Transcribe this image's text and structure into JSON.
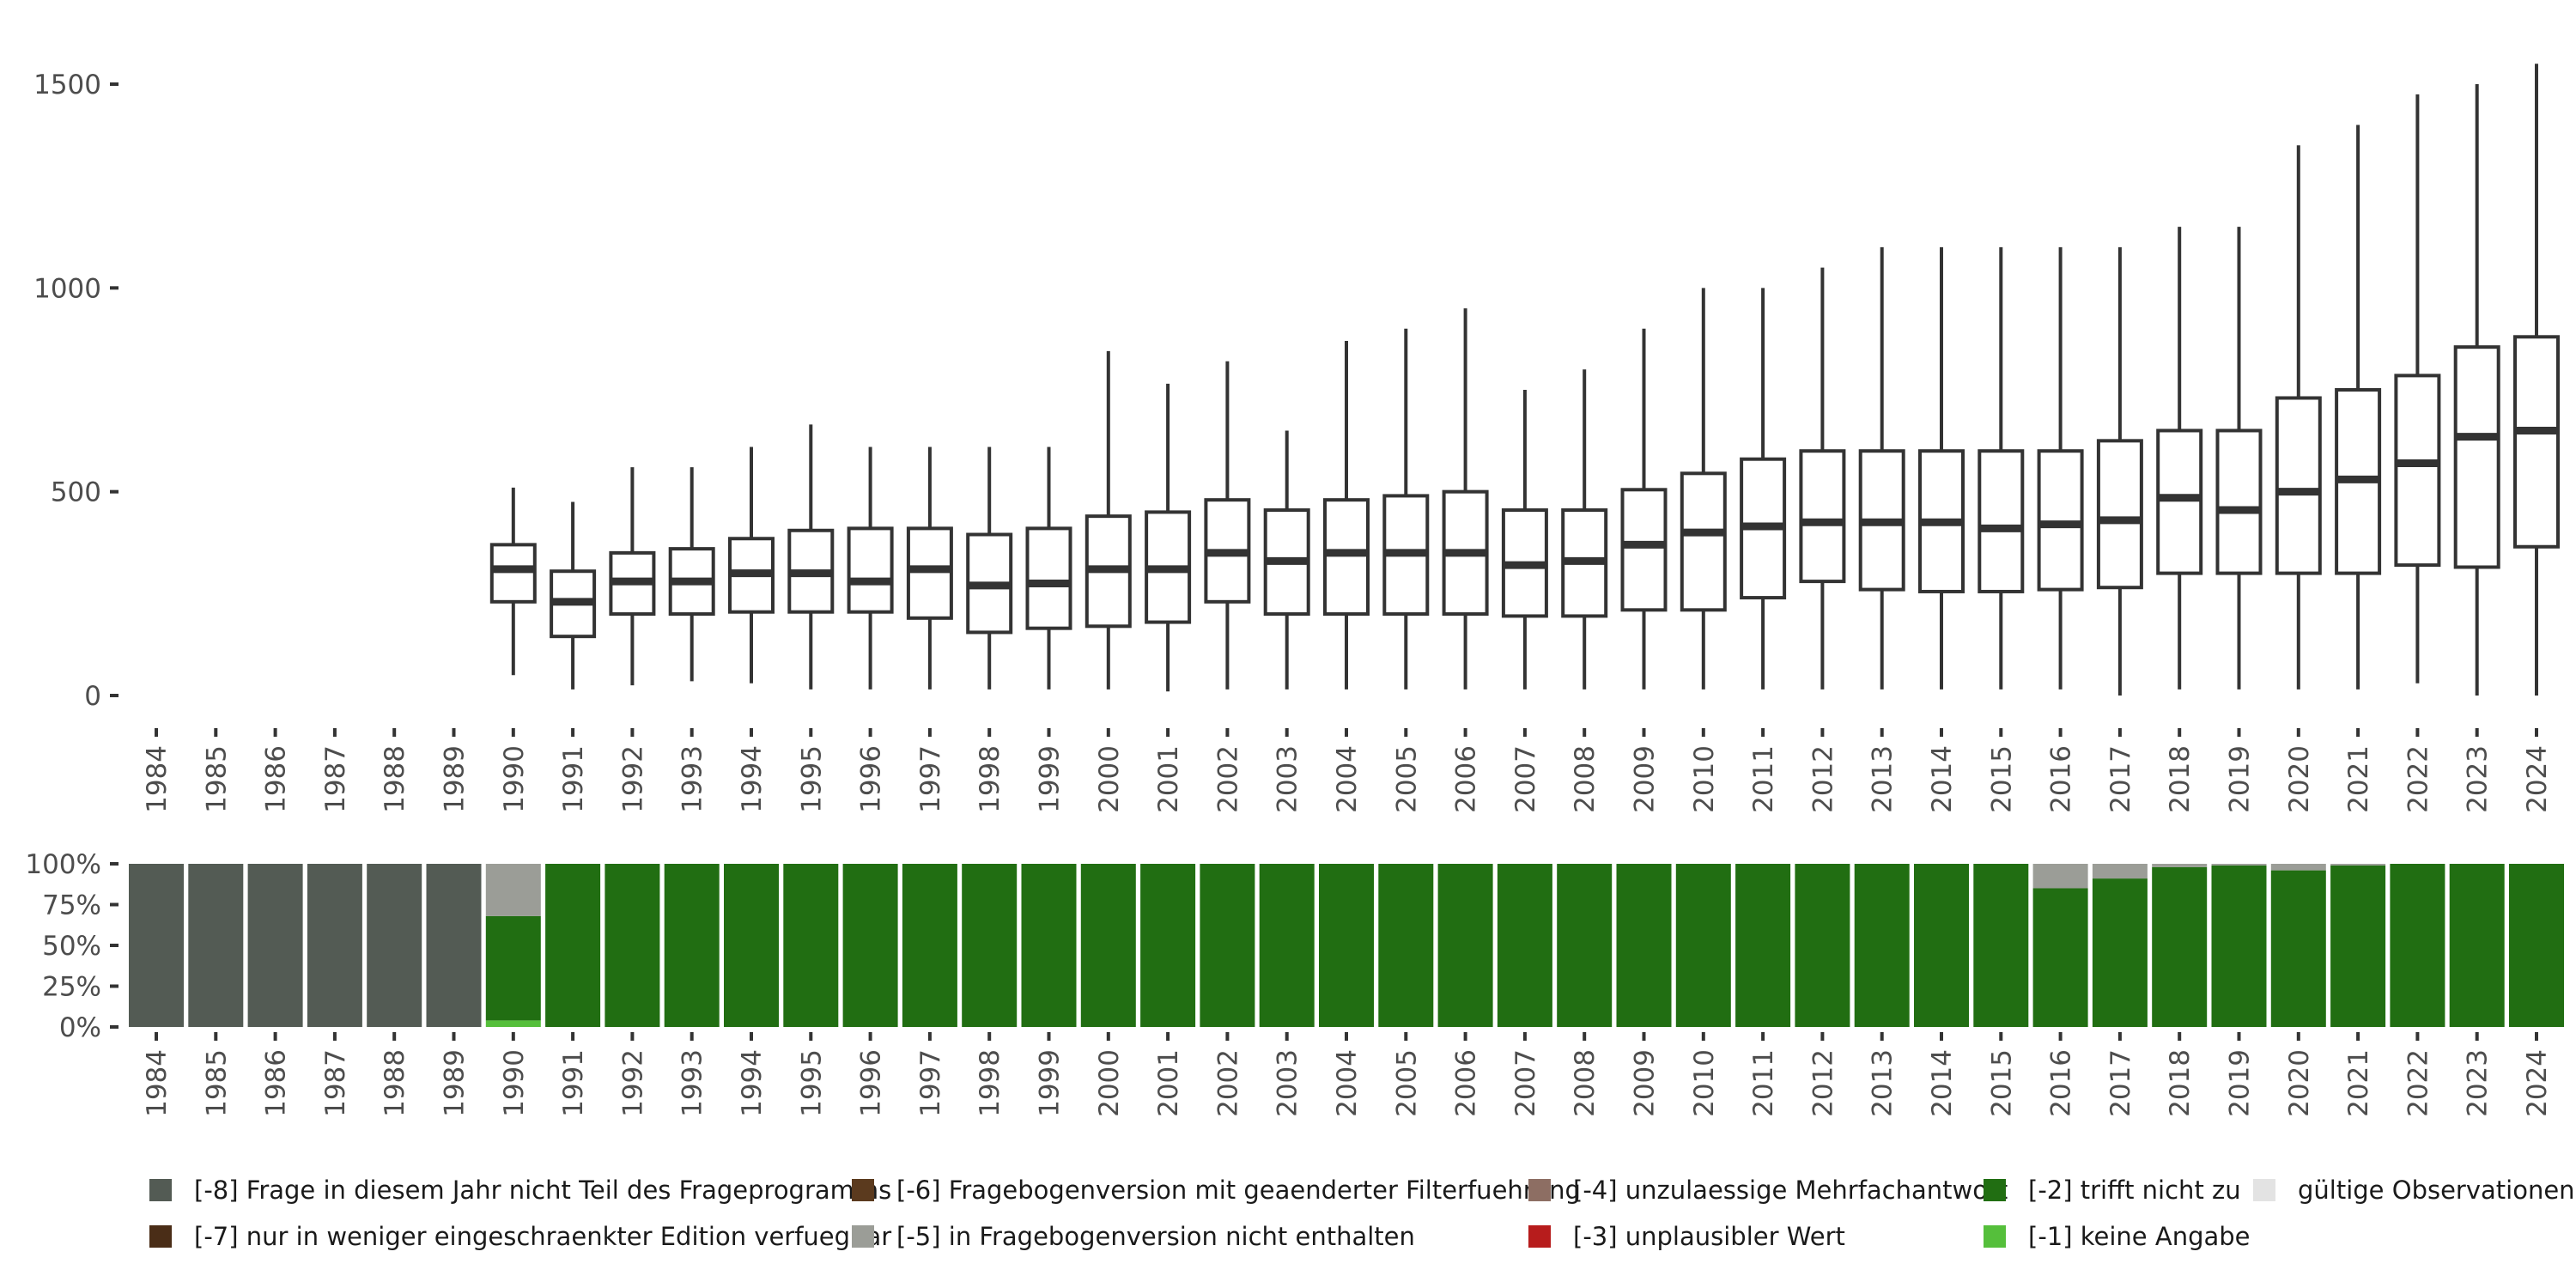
{
  "colors": {
    "m8": "#535b54",
    "m7": "#4a2d17",
    "m6": "#5b3a1e",
    "m5": "#9b9d97",
    "m4": "#8d6e63",
    "m3": "#b71c1c",
    "m2": "#216e12",
    "m1": "#55bf3b",
    "valid": "#e3e3e3",
    "box_stroke": "#333333"
  },
  "chart_data": [
    {
      "type": "boxplot",
      "title": "",
      "xlabel": "",
      "ylabel": "",
      "ylim": [
        0,
        1550
      ],
      "yticks": [
        0,
        500,
        1000,
        1500
      ],
      "ytick_labels": [
        "0",
        "500",
        "1000",
        "1500"
      ],
      "categories": [
        "1984",
        "1985",
        "1986",
        "1987",
        "1988",
        "1989",
        "1990",
        "1991",
        "1992",
        "1993",
        "1994",
        "1995",
        "1996",
        "1997",
        "1998",
        "1999",
        "2000",
        "2001",
        "2002",
        "2003",
        "2004",
        "2005",
        "2006",
        "2007",
        "2008",
        "2009",
        "2010",
        "2011",
        "2012",
        "2013",
        "2014",
        "2015",
        "2016",
        "2017",
        "2018",
        "2019",
        "2020",
        "2021",
        "2022",
        "2023",
        "2024"
      ],
      "boxes": [
        null,
        null,
        null,
        null,
        null,
        null,
        {
          "whisker_low": 50,
          "q1": 230,
          "median": 310,
          "q3": 370,
          "whisker_high": 510
        },
        {
          "whisker_low": 15,
          "q1": 145,
          "median": 230,
          "q3": 305,
          "whisker_high": 475
        },
        {
          "whisker_low": 25,
          "q1": 200,
          "median": 280,
          "q3": 350,
          "whisker_high": 560
        },
        {
          "whisker_low": 35,
          "q1": 200,
          "median": 280,
          "q3": 360,
          "whisker_high": 560
        },
        {
          "whisker_low": 30,
          "q1": 205,
          "median": 300,
          "q3": 385,
          "whisker_high": 610
        },
        {
          "whisker_low": 15,
          "q1": 205,
          "median": 300,
          "q3": 405,
          "whisker_high": 665
        },
        {
          "whisker_low": 15,
          "q1": 205,
          "median": 280,
          "q3": 410,
          "whisker_high": 610
        },
        {
          "whisker_low": 15,
          "q1": 190,
          "median": 310,
          "q3": 410,
          "whisker_high": 610
        },
        {
          "whisker_low": 15,
          "q1": 155,
          "median": 270,
          "q3": 395,
          "whisker_high": 610
        },
        {
          "whisker_low": 15,
          "q1": 165,
          "median": 275,
          "q3": 410,
          "whisker_high": 610
        },
        {
          "whisker_low": 15,
          "q1": 170,
          "median": 310,
          "q3": 440,
          "whisker_high": 845
        },
        {
          "whisker_low": 10,
          "q1": 180,
          "median": 310,
          "q3": 450,
          "whisker_high": 765
        },
        {
          "whisker_low": 15,
          "q1": 230,
          "median": 350,
          "q3": 480,
          "whisker_high": 820
        },
        {
          "whisker_low": 15,
          "q1": 200,
          "median": 330,
          "q3": 455,
          "whisker_high": 650
        },
        {
          "whisker_low": 15,
          "q1": 200,
          "median": 350,
          "q3": 480,
          "whisker_high": 870
        },
        {
          "whisker_low": 15,
          "q1": 200,
          "median": 350,
          "q3": 490,
          "whisker_high": 900
        },
        {
          "whisker_low": 15,
          "q1": 200,
          "median": 350,
          "q3": 500,
          "whisker_high": 950
        },
        {
          "whisker_low": 15,
          "q1": 195,
          "median": 320,
          "q3": 455,
          "whisker_high": 750
        },
        {
          "whisker_low": 15,
          "q1": 195,
          "median": 330,
          "q3": 455,
          "whisker_high": 800
        },
        {
          "whisker_low": 15,
          "q1": 210,
          "median": 370,
          "q3": 505,
          "whisker_high": 900
        },
        {
          "whisker_low": 15,
          "q1": 210,
          "median": 400,
          "q3": 545,
          "whisker_high": 1000
        },
        {
          "whisker_low": 15,
          "q1": 240,
          "median": 415,
          "q3": 580,
          "whisker_high": 1000
        },
        {
          "whisker_low": 15,
          "q1": 280,
          "median": 425,
          "q3": 600,
          "whisker_high": 1050
        },
        {
          "whisker_low": 15,
          "q1": 260,
          "median": 425,
          "q3": 600,
          "whisker_high": 1100
        },
        {
          "whisker_low": 15,
          "q1": 255,
          "median": 425,
          "q3": 600,
          "whisker_high": 1100
        },
        {
          "whisker_low": 15,
          "q1": 255,
          "median": 410,
          "q3": 600,
          "whisker_high": 1100
        },
        {
          "whisker_low": 15,
          "q1": 260,
          "median": 420,
          "q3": 600,
          "whisker_high": 1100
        },
        {
          "whisker_low": 0,
          "q1": 265,
          "median": 430,
          "q3": 625,
          "whisker_high": 1100
        },
        {
          "whisker_low": 15,
          "q1": 300,
          "median": 485,
          "q3": 650,
          "whisker_high": 1150
        },
        {
          "whisker_low": 15,
          "q1": 300,
          "median": 455,
          "q3": 650,
          "whisker_high": 1150
        },
        {
          "whisker_low": 15,
          "q1": 300,
          "median": 500,
          "q3": 730,
          "whisker_high": 1350
        },
        {
          "whisker_low": 15,
          "q1": 300,
          "median": 530,
          "q3": 750,
          "whisker_high": 1400
        },
        {
          "whisker_low": 30,
          "q1": 320,
          "median": 570,
          "q3": 785,
          "whisker_high": 1475
        },
        {
          "whisker_low": 0,
          "q1": 315,
          "median": 635,
          "q3": 855,
          "whisker_high": 1500
        },
        {
          "whisker_low": 0,
          "q1": 365,
          "median": 650,
          "q3": 880,
          "whisker_high": 1550
        }
      ]
    },
    {
      "type": "stacked_bar",
      "title": "",
      "xlabel": "",
      "ylabel": "",
      "ylim": [
        0,
        100
      ],
      "yticks": [
        0,
        25,
        50,
        75,
        100
      ],
      "ytick_labels": [
        "0%",
        "25%",
        "50%",
        "75%",
        "100%"
      ],
      "categories": [
        "1984",
        "1985",
        "1986",
        "1987",
        "1988",
        "1989",
        "1990",
        "1991",
        "1992",
        "1993",
        "1994",
        "1995",
        "1996",
        "1997",
        "1998",
        "1999",
        "2000",
        "2001",
        "2002",
        "2003",
        "2004",
        "2005",
        "2006",
        "2007",
        "2008",
        "2009",
        "2010",
        "2011",
        "2012",
        "2013",
        "2014",
        "2015",
        "2016",
        "2017",
        "2018",
        "2019",
        "2020",
        "2021",
        "2022",
        "2023",
        "2024"
      ],
      "series": [
        {
          "name": "[-8] Frage in diesem Jahr nicht Teil des Frageprogramms",
          "color_key": "m8",
          "values": [
            100,
            100,
            100,
            100,
            100,
            100,
            0,
            0,
            0,
            0,
            0,
            0,
            0,
            0,
            0,
            0,
            0,
            0,
            0,
            0,
            0,
            0,
            0,
            0,
            0,
            0,
            0,
            0,
            0,
            0,
            0,
            0,
            0,
            0,
            0,
            0,
            0,
            0,
            0,
            0,
            0
          ]
        },
        {
          "name": "[-1] keine Angabe",
          "color_key": "m1",
          "values": [
            0,
            0,
            0,
            0,
            0,
            0,
            4,
            0,
            0,
            0,
            0,
            0,
            0,
            0,
            0,
            0,
            0,
            0,
            0,
            0,
            0,
            0,
            0,
            0,
            0,
            0,
            0,
            0,
            0,
            0,
            0,
            0,
            0,
            0,
            0,
            0,
            0,
            0,
            0,
            0,
            0
          ]
        },
        {
          "name": "[-2] trifft nicht zu",
          "color_key": "m2",
          "values": [
            0,
            0,
            0,
            0,
            0,
            0,
            64,
            100,
            100,
            100,
            100,
            100,
            100,
            100,
            100,
            100,
            100,
            100,
            100,
            100,
            100,
            100,
            100,
            100,
            100,
            100,
            100,
            100,
            100,
            100,
            100,
            100,
            85,
            91,
            98,
            99,
            96,
            99,
            100,
            100,
            100
          ]
        },
        {
          "name": "[-5] in Fragebogenversion nicht enthalten",
          "color_key": "m5",
          "values": [
            0,
            0,
            0,
            0,
            0,
            0,
            32,
            0,
            0,
            0,
            0,
            0,
            0,
            0,
            0,
            0,
            0,
            0,
            0,
            0,
            0,
            0,
            0,
            0,
            0,
            0,
            0,
            0,
            0,
            0,
            0,
            0,
            15,
            9,
            2,
            1,
            4,
            1,
            0,
            0,
            0
          ]
        }
      ]
    }
  ],
  "legend": [
    {
      "label": "[-8] Frage in diesem Jahr nicht Teil des Frageprogramms",
      "color_key": "m8"
    },
    {
      "label": "[-7] nur in weniger eingeschraenkter Edition verfuegbar",
      "color_key": "m7"
    },
    {
      "label": "[-6] Fragebogenversion mit geaenderter Filterfuehrung",
      "color_key": "m6"
    },
    {
      "label": "[-5] in Fragebogenversion nicht enthalten",
      "color_key": "m5"
    },
    {
      "label": "[-4] unzulaessige Mehrfachantwort",
      "color_key": "m4"
    },
    {
      "label": "[-3] unplausibler Wert",
      "color_key": "m3"
    },
    {
      "label": "[-2] trifft nicht zu",
      "color_key": "m2"
    },
    {
      "label": "[-1] keine Angabe",
      "color_key": "m1"
    },
    {
      "label": "gültige Observationen",
      "color_key": "valid"
    }
  ]
}
